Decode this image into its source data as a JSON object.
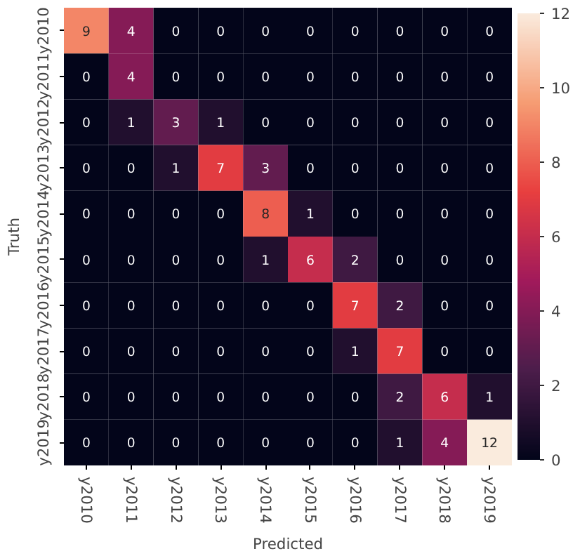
{
  "chart_data": {
    "type": "heatmap",
    "xlabel": "Predicted",
    "ylabel": "Truth",
    "categories": [
      "y2010",
      "y2011",
      "y2012",
      "y2013",
      "y2014",
      "y2015",
      "y2016",
      "y2017",
      "y2018",
      "y2019"
    ],
    "y_categories": [
      "y2010",
      "y2011",
      "y2012",
      "y2013",
      "y2014",
      "y2015",
      "y2016",
      "y2017",
      "y2018",
      "y2019"
    ],
    "cells": [
      [
        9,
        4,
        0,
        0,
        0,
        0,
        0,
        0,
        0,
        0
      ],
      [
        0,
        4,
        0,
        0,
        0,
        0,
        0,
        0,
        0,
        0
      ],
      [
        0,
        1,
        3,
        1,
        0,
        0,
        0,
        0,
        0,
        0
      ],
      [
        0,
        0,
        1,
        7,
        3,
        0,
        0,
        0,
        0,
        0
      ],
      [
        0,
        0,
        0,
        0,
        8,
        1,
        0,
        0,
        0,
        0
      ],
      [
        0,
        0,
        0,
        0,
        1,
        6,
        2,
        0,
        0,
        0
      ],
      [
        0,
        0,
        0,
        0,
        0,
        0,
        7,
        2,
        0,
        0
      ],
      [
        0,
        0,
        0,
        0,
        0,
        0,
        1,
        7,
        0,
        0
      ],
      [
        0,
        0,
        0,
        0,
        0,
        0,
        0,
        2,
        6,
        1
      ],
      [
        0,
        0,
        0,
        0,
        0,
        0,
        0,
        1,
        4,
        12
      ]
    ],
    "clim": [
      0,
      12
    ],
    "cticks": [
      0,
      2,
      4,
      6,
      8,
      10,
      12
    ],
    "data_labels": true
  }
}
